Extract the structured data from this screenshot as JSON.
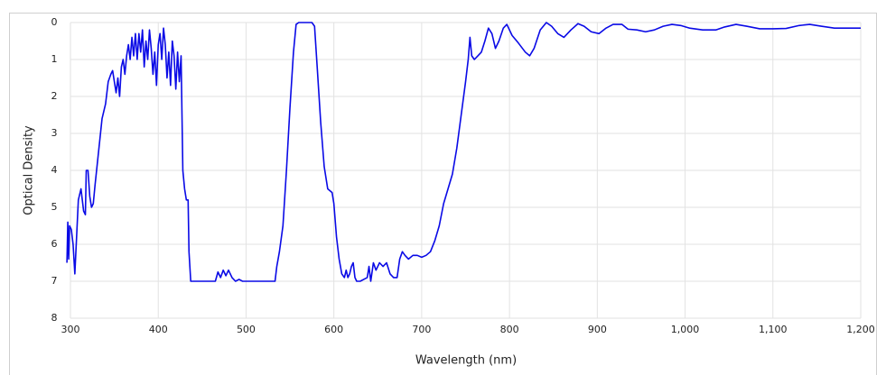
{
  "chart_data": {
    "type": "line",
    "xlabel": "Wavelength (nm)",
    "ylabel": "Optical Density",
    "color": "#0a0ae6",
    "grid": true,
    "y_inverted": true,
    "xlim": [
      300,
      1200
    ],
    "ylim": [
      0,
      8
    ],
    "xticks": [
      300,
      400,
      500,
      600,
      700,
      800,
      900,
      {
        "value": 1000,
        "label": "1,000"
      },
      {
        "value": 1100,
        "label": "1,100"
      },
      {
        "value": 1200,
        "label": "1,200"
      }
    ],
    "yticks": [
      0,
      1,
      2,
      3,
      4,
      5,
      6,
      7,
      8
    ],
    "x": [
      296,
      297,
      298,
      299,
      301,
      303,
      305,
      307,
      309,
      312,
      315,
      317,
      318,
      320,
      322,
      324,
      326,
      328,
      332,
      336,
      340,
      343,
      346,
      348,
      350,
      352,
      354,
      356,
      358,
      360,
      362,
      364,
      366,
      368,
      370,
      372,
      374,
      376,
      378,
      380,
      382,
      384,
      386,
      388,
      390,
      392,
      394,
      396,
      398,
      400,
      402,
      404,
      406,
      408,
      410,
      412,
      414,
      416,
      418,
      420,
      422,
      424,
      426,
      428,
      430,
      432,
      434,
      435,
      437,
      465,
      468,
      471,
      474,
      477,
      480,
      484,
      488,
      492,
      496,
      533,
      535,
      538,
      542,
      546,
      550,
      554,
      557,
      560,
      575,
      578,
      581,
      585,
      589,
      593,
      598,
      600,
      603,
      606,
      609,
      612,
      614,
      616,
      618,
      620,
      622,
      624,
      626,
      630,
      634,
      638,
      640,
      642,
      645,
      648,
      652,
      656,
      660,
      664,
      668,
      672,
      675,
      678,
      681,
      685,
      690,
      695,
      700,
      705,
      710,
      715,
      720,
      725,
      730,
      735,
      740,
      745,
      750,
      753,
      755,
      757,
      760,
      764,
      768,
      772,
      776,
      780,
      784,
      788,
      793,
      797,
      803,
      810,
      818,
      823,
      828,
      835,
      842,
      848,
      855,
      862,
      870,
      878,
      885,
      893,
      902,
      910,
      918,
      928,
      935,
      945,
      955,
      965,
      975,
      985,
      995,
      1005,
      1020,
      1035,
      1045,
      1058,
      1070,
      1085,
      1100,
      1115,
      1130,
      1142,
      1155,
      1170,
      1185,
      1200
    ],
    "values": [
      6.5,
      5.4,
      6.4,
      5.5,
      5.6,
      6.0,
      6.8,
      5.8,
      4.8,
      4.5,
      5.1,
      5.2,
      4.0,
      4.0,
      4.7,
      5.0,
      4.9,
      4.4,
      3.5,
      2.6,
      2.2,
      1.6,
      1.4,
      1.3,
      1.6,
      1.9,
      1.5,
      2.0,
      1.2,
      1.0,
      1.4,
      0.9,
      0.6,
      1.0,
      0.4,
      0.9,
      0.3,
      1.0,
      0.3,
      0.8,
      0.2,
      1.2,
      0.5,
      1.0,
      0.2,
      0.7,
      1.4,
      0.8,
      1.7,
      0.6,
      0.3,
      1.0,
      0.15,
      0.6,
      1.5,
      0.8,
      1.7,
      0.5,
      0.9,
      1.8,
      0.8,
      1.6,
      0.9,
      4.0,
      4.5,
      4.8,
      4.8,
      6.2,
      7.0,
      7.0,
      6.75,
      6.9,
      6.7,
      6.85,
      6.7,
      6.9,
      7.0,
      6.95,
      7.0,
      7.0,
      6.6,
      6.2,
      5.5,
      4.0,
      2.3,
      0.8,
      0.05,
      0,
      0,
      0.1,
      1.2,
      2.7,
      3.9,
      4.5,
      4.6,
      4.9,
      5.8,
      6.4,
      6.8,
      6.9,
      6.7,
      6.9,
      6.8,
      6.6,
      6.5,
      6.9,
      7.0,
      7.0,
      6.95,
      6.9,
      6.6,
      7.0,
      6.5,
      6.7,
      6.5,
      6.6,
      6.5,
      6.8,
      6.9,
      6.9,
      6.4,
      6.2,
      6.3,
      6.4,
      6.3,
      6.3,
      6.35,
      6.3,
      6.2,
      5.9,
      5.5,
      4.9,
      4.5,
      4.1,
      3.4,
      2.5,
      1.6,
      1.0,
      0.4,
      0.9,
      1.0,
      0.9,
      0.8,
      0.5,
      0.15,
      0.3,
      0.7,
      0.5,
      0.15,
      0.05,
      0.35,
      0.55,
      0.8,
      0.9,
      0.7,
      0.2,
      0.0,
      0.1,
      0.3,
      0.4,
      0.2,
      0.03,
      0.1,
      0.25,
      0.3,
      0.15,
      0.05,
      0.05,
      0.18,
      0.2,
      0.25,
      0.2,
      0.1,
      0.05,
      0.08,
      0.15,
      0.2,
      0.2,
      0.12,
      0.05,
      0.1,
      0.17,
      0.17,
      0.16,
      0.08,
      0.05,
      0.1,
      0.15,
      0.15,
      0.15
    ]
  }
}
